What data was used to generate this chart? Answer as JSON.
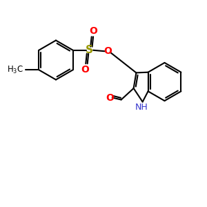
{
  "bg_color": "#ffffff",
  "bond_color": "#000000",
  "bond_width": 1.5,
  "atom_colors": {
    "O": "#ff0000",
    "S": "#999900",
    "N": "#3333cc",
    "C": "#000000"
  },
  "figsize": [
    3.0,
    3.0
  ],
  "dpi": 100
}
